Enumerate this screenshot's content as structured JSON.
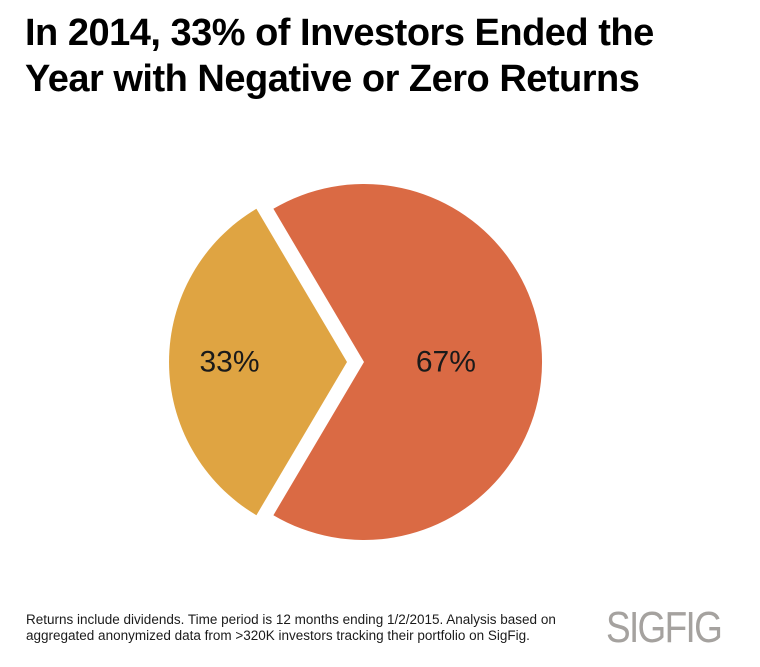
{
  "title": {
    "lines": [
      "In 2014, 33% of Investors Ended the",
      "Year with Negative or Zero Returns"
    ],
    "color": "#000000"
  },
  "chart_data": {
    "type": "pie",
    "title": "In 2014, 33% of Investors Ended the Year with Negative or Zero Returns",
    "slices": [
      {
        "name": "positive-returns",
        "label": "67%",
        "value": 67,
        "color": "#da6a44",
        "exploded": false
      },
      {
        "name": "negative-or-zero-returns",
        "label": "33%",
        "value": 33,
        "color": "#dfa442",
        "exploded": true
      }
    ],
    "legend_position": "none",
    "data_label_color": "#1a1a1a",
    "background": "#ffffff"
  },
  "footer": {
    "lines": [
      "Returns include dividends. Time period is 12 months ending 1/2/2015. Analysis based on",
      "aggregated anonymized data from >320K investors tracking their portfolio on SigFig."
    ],
    "color": "#1b1b1b"
  },
  "logo": {
    "text": "SIGFIG",
    "color": "#a5a29f"
  }
}
